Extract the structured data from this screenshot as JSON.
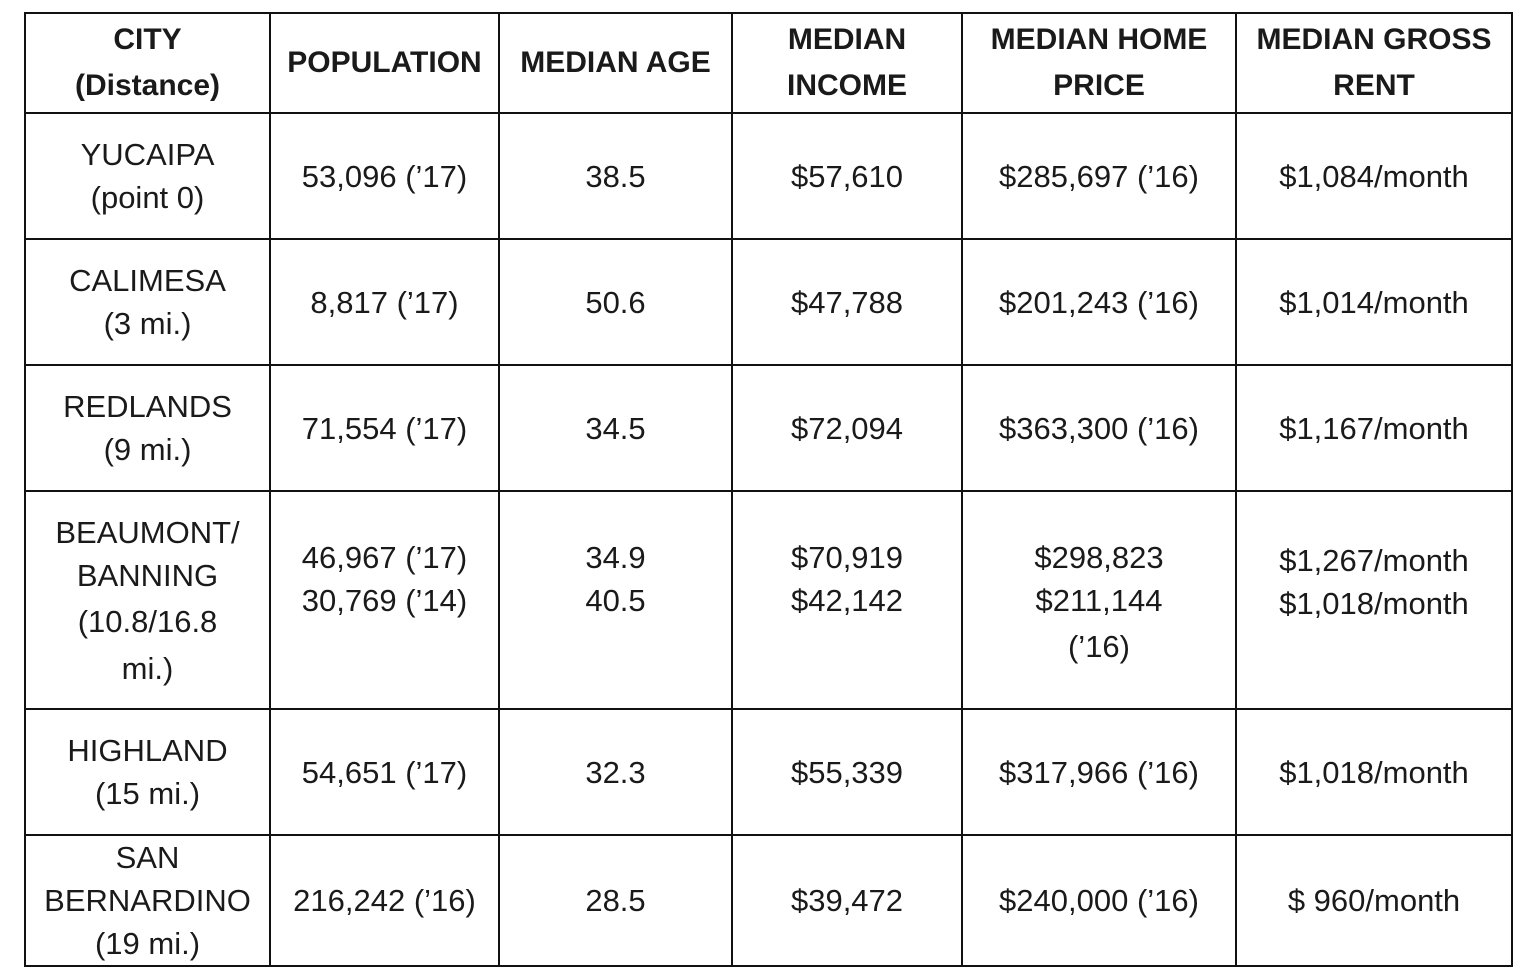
{
  "table": {
    "headers": [
      [
        "CITY",
        "(Distance)"
      ],
      [
        "POPULATION"
      ],
      [
        "MEDIAN AGE"
      ],
      [
        "MEDIAN",
        "INCOME"
      ],
      [
        "MEDIAN HOME",
        "PRICE"
      ],
      [
        "MEDIAN GROSS",
        "RENT"
      ]
    ],
    "rows": [
      {
        "city": [
          "YUCAIPA",
          "(point 0)"
        ],
        "population": [
          "53,096 (’17)"
        ],
        "median_age": [
          "38.5"
        ],
        "median_income": [
          "$57,610"
        ],
        "median_home_price": [
          "$285,697 (’16)"
        ],
        "median_gross_rent": [
          "$1,084/month"
        ]
      },
      {
        "city": [
          "CALIMESA",
          "(3 mi.)"
        ],
        "population": [
          "8,817 (’17)"
        ],
        "median_age": [
          "50.6"
        ],
        "median_income": [
          "$47,788"
        ],
        "median_home_price": [
          "$201,243 (’16)"
        ],
        "median_gross_rent": [
          "$1,014/month"
        ]
      },
      {
        "city": [
          "REDLANDS",
          "(9 mi.)"
        ],
        "population": [
          "71,554 (’17)"
        ],
        "median_age": [
          "34.5"
        ],
        "median_income": [
          "$72,094"
        ],
        "median_home_price": [
          "$363,300 (’16)"
        ],
        "median_gross_rent": [
          "$1,167/month"
        ]
      },
      {
        "city": [
          "BEAUMONT/",
          "BANNING",
          "(10.8/16.8",
          "mi.)"
        ],
        "population": [
          "46,967 (’17)",
          "30,769 (’14)"
        ],
        "median_age": [
          "34.9",
          "40.5"
        ],
        "median_income": [
          "$70,919",
          "$42,142"
        ],
        "median_home_price": [
          "$298,823",
          "$211,144",
          "(’16)"
        ],
        "median_gross_rent": [
          "$1,267/month",
          "$1,018/month"
        ]
      },
      {
        "city": [
          "HIGHLAND",
          "(15 mi.)"
        ],
        "population": [
          "54,651 (’17)"
        ],
        "median_age": [
          "32.3"
        ],
        "median_income": [
          "$55,339"
        ],
        "median_home_price": [
          "$317,966 (’16)"
        ],
        "median_gross_rent": [
          "$1,018/month"
        ]
      },
      {
        "city": [
          "SAN",
          "BERNARDINO",
          "(19 mi.)"
        ],
        "population": [
          "216,242 (’16)"
        ],
        "median_age": [
          "28.5"
        ],
        "median_income": [
          "$39,472"
        ],
        "median_home_price": [
          "$240,000 (’16)"
        ],
        "median_gross_rent": [
          "$ 960/month"
        ]
      }
    ]
  }
}
